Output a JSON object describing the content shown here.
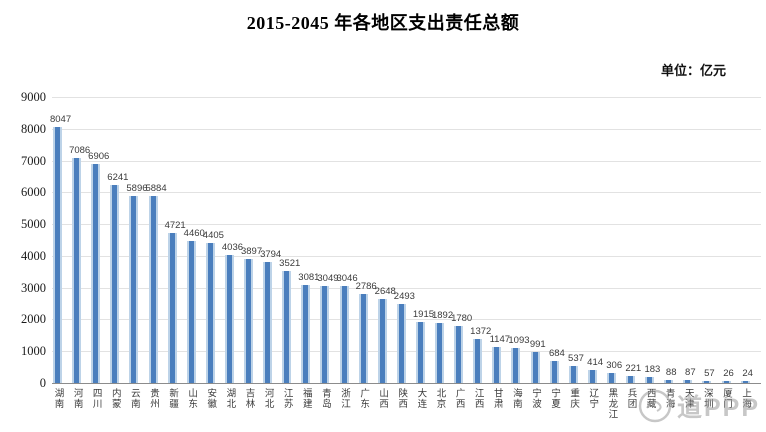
{
  "header": {
    "title": "2015-2045 年各地区支出责任总额",
    "unit_label": "单位：亿元"
  },
  "watermark": {
    "text": "道PPP",
    "icon": "swirl-logo-circle"
  },
  "colors": {
    "bar": "#4a7ebd",
    "bar_edge": "#bdd3e8",
    "gridline": "#e2e2e2",
    "axis": "#8c8c8c",
    "label_text": "#3b3b3b"
  },
  "chart_data": {
    "type": "bar",
    "title": "2015-2045 年各地区支出责任总额",
    "unit": "亿元",
    "xlabel": "",
    "ylabel": "",
    "ylim": [
      0,
      9000
    ],
    "ytick_step": 1000,
    "yticks": [
      0,
      1000,
      2000,
      3000,
      4000,
      5000,
      6000,
      7000,
      8000,
      9000
    ],
    "grid": "horizontal",
    "legend": "none",
    "categories": [
      "湖南",
      "河南",
      "四川",
      "内蒙",
      "云南",
      "贵州",
      "新疆",
      "山东",
      "安徽",
      "湖北",
      "吉林",
      "河北",
      "江苏",
      "福建",
      "青岛",
      "浙江",
      "广东",
      "山西",
      "陕西",
      "大连",
      "北京",
      "广西",
      "江西",
      "甘肃",
      "海南",
      "宁波",
      "宁夏",
      "重庆",
      "辽宁",
      "黑龙江",
      "兵团",
      "西藏",
      "青海",
      "天津",
      "深圳",
      "厦门",
      "上海"
    ],
    "values": [
      8047,
      7086,
      6906,
      6241,
      5896,
      5884,
      4721,
      4460,
      4405,
      4036,
      3897,
      3794,
      3521,
      3081,
      3049,
      3046,
      2786,
      2648,
      2493,
      1915,
      1892,
      1780,
      1372,
      1147,
      1093,
      991,
      684,
      537,
      414,
      306,
      221,
      183,
      88,
      87,
      57,
      26,
      24
    ]
  }
}
